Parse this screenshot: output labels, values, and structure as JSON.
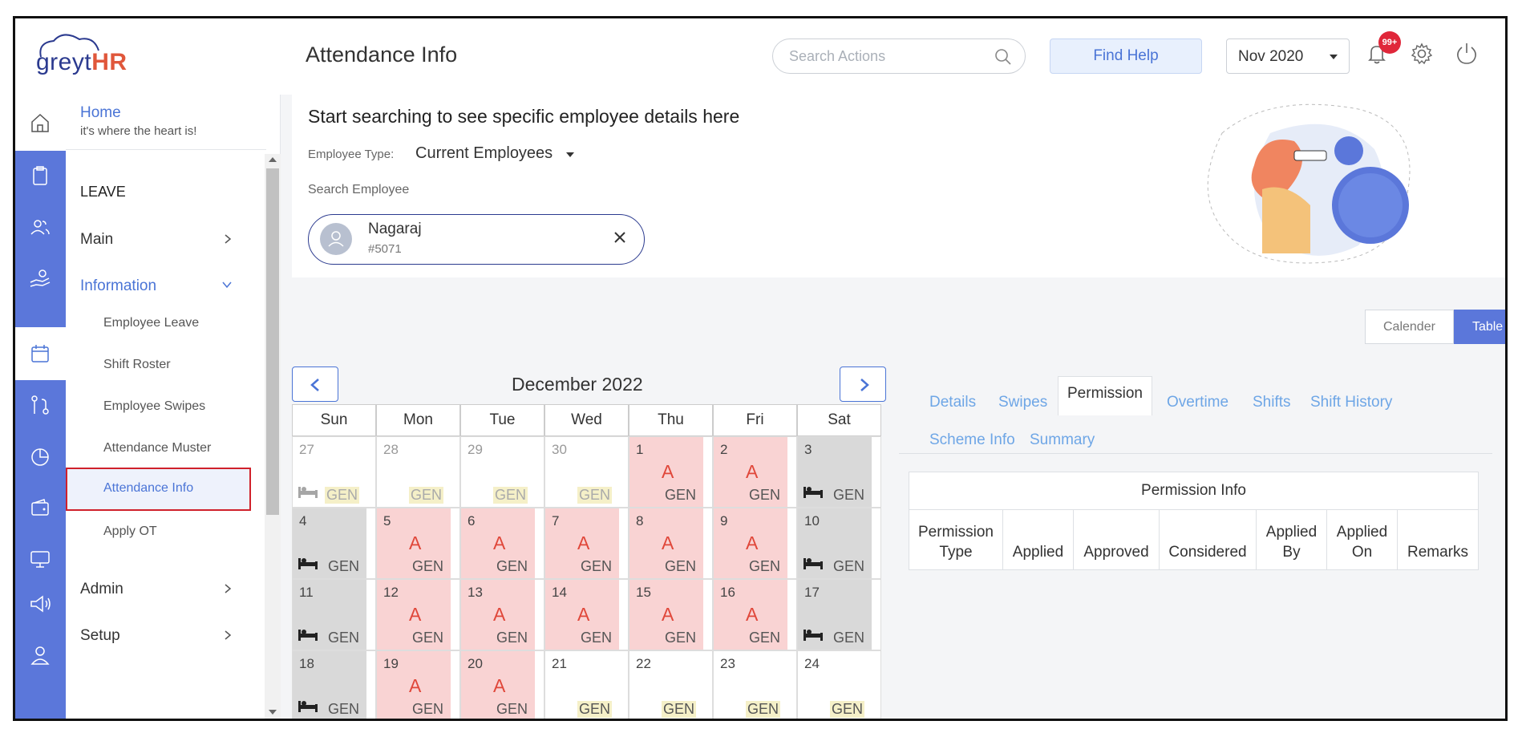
{
  "header": {
    "logo_prefix": "greyt",
    "logo_suffix": "HR",
    "title": "Attendance Info",
    "search_placeholder": "Search Actions",
    "find_help_label": "Find Help",
    "month_value": "Nov 2020",
    "notification_badge": "99+"
  },
  "sidebar": {
    "home_title": "Home",
    "home_subtitle": "it's where the heart is!",
    "section": "LEAVE",
    "main_label": "Main",
    "information_label": "Information",
    "sub_items": [
      "Employee Leave",
      "Shift Roster",
      "Employee Swipes",
      "Attendance Muster",
      "Attendance Info",
      "Apply OT"
    ],
    "admin_label": "Admin",
    "setup_label": "Setup"
  },
  "search_card": {
    "heading": "Start searching to see specific employee details here",
    "employee_type_label": "Employee Type:",
    "employee_type_value": "Current Employees",
    "search_employee_label": "Search Employee",
    "employee_name": "Nagaraj",
    "employee_id": "#5071"
  },
  "view_toggle": {
    "calendar": "Calender",
    "table": "Table"
  },
  "calendar": {
    "month_title": "December 2022",
    "weekdays": [
      "Sun",
      "Mon",
      "Tue",
      "Wed",
      "Thu",
      "Fri",
      "Sat"
    ],
    "absent_mark": "A",
    "shift_code": "GEN",
    "weeks": [
      [
        {
          "d": "27",
          "s": "muted"
        },
        {
          "d": "28",
          "s": "muted"
        },
        {
          "d": "29",
          "s": "muted"
        },
        {
          "d": "30",
          "s": "muted"
        },
        {
          "d": "1",
          "s": "absent"
        },
        {
          "d": "2",
          "s": "absent"
        },
        {
          "d": "3",
          "s": "off"
        }
      ],
      [
        {
          "d": "4",
          "s": "off"
        },
        {
          "d": "5",
          "s": "absent"
        },
        {
          "d": "6",
          "s": "absent"
        },
        {
          "d": "7",
          "s": "absent"
        },
        {
          "d": "8",
          "s": "absent"
        },
        {
          "d": "9",
          "s": "absent"
        },
        {
          "d": "10",
          "s": "off"
        }
      ],
      [
        {
          "d": "11",
          "s": "off"
        },
        {
          "d": "12",
          "s": "absent"
        },
        {
          "d": "13",
          "s": "absent"
        },
        {
          "d": "14",
          "s": "absent"
        },
        {
          "d": "15",
          "s": "absent"
        },
        {
          "d": "16",
          "s": "absent"
        },
        {
          "d": "17",
          "s": "off"
        }
      ],
      [
        {
          "d": "18",
          "s": "off"
        },
        {
          "d": "19",
          "s": "absent"
        },
        {
          "d": "20",
          "s": "absent"
        },
        {
          "d": "21",
          "s": "normal"
        },
        {
          "d": "22",
          "s": "normal"
        },
        {
          "d": "23",
          "s": "normal"
        },
        {
          "d": "24",
          "s": "normal"
        }
      ]
    ]
  },
  "details_tabs": [
    "Details",
    "Swipes",
    "Permission",
    "Overtime",
    "Shifts",
    "Shift History",
    "Scheme Info",
    "Summary"
  ],
  "permission_table": {
    "title": "Permission Info",
    "columns": [
      "Permission Type",
      "Applied",
      "Approved",
      "Considered",
      "Applied By",
      "Applied On",
      "Remarks"
    ]
  },
  "colors": {
    "brand": "#5b77da",
    "absent": "#f9d3d3",
    "off": "#d9d9d9",
    "link": "#4a74d6",
    "alert": "#e0273a"
  }
}
